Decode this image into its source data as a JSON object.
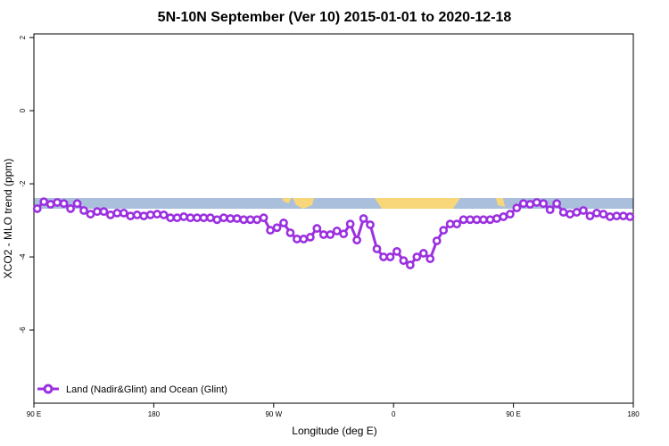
{
  "chart_data": {
    "type": "line",
    "title": "5N-10N September (Ver 10)   2015-01-01 to 2020-12-18",
    "xlabel": "Longitude (deg E)",
    "ylabel": "XCO2 - MLO trend (ppm)",
    "x": [
      92.5,
      97.5,
      102.5,
      107.5,
      112.5,
      117.5,
      122.5,
      127.5,
      132.5,
      137.5,
      142.5,
      147.5,
      152.5,
      157.5,
      162.5,
      167.5,
      172.5,
      177.5,
      182.5,
      187.5,
      192.5,
      197.5,
      202.5,
      207.5,
      212.5,
      217.5,
      222.5,
      227.5,
      232.5,
      237.5,
      242.5,
      247.5,
      252.5,
      257.5,
      262.5,
      267.5,
      272.5,
      277.5,
      282.5,
      287.5,
      292.5,
      297.5,
      302.5,
      307.5,
      312.5,
      317.5,
      322.5,
      327.5,
      332.5,
      337.5,
      342.5,
      347.5,
      352.5,
      357.5,
      362.5,
      367.5,
      372.5,
      377.5,
      382.5,
      387.5,
      392.5,
      397.5,
      402.5,
      407.5,
      412.5,
      417.5,
      422.5,
      427.5,
      432.5,
      437.5,
      442.5,
      447.5,
      452.5,
      457.5,
      462.5,
      467.5,
      472.5,
      477.5,
      482.5,
      487.5,
      492.5,
      497.5,
      502.5,
      507.5,
      512.5,
      517.5,
      522.5,
      527.5,
      532.5,
      537.5
    ],
    "series": [
      {
        "name": "Land (Nadir&Glint) and Ocean (Glint)",
        "color": "#9b30e0",
        "values": [
          -2.68,
          -2.49,
          -2.56,
          -2.51,
          -2.54,
          -2.68,
          -2.54,
          -2.73,
          -2.83,
          -2.76,
          -2.76,
          -2.85,
          -2.8,
          -2.8,
          -2.88,
          -2.85,
          -2.88,
          -2.85,
          -2.83,
          -2.85,
          -2.93,
          -2.93,
          -2.9,
          -2.93,
          -2.93,
          -2.93,
          -2.93,
          -2.98,
          -2.93,
          -2.95,
          -2.95,
          -2.98,
          -2.98,
          -2.98,
          -2.93,
          -3.27,
          -3.2,
          -3.07,
          -3.34,
          -3.51,
          -3.51,
          -3.46,
          -3.22,
          -3.39,
          -3.39,
          -3.29,
          -3.37,
          -3.1,
          -3.54,
          -2.95,
          -3.12,
          -3.78,
          -4.0,
          -4.0,
          -3.85,
          -4.1,
          -4.22,
          -4.0,
          -3.9,
          -4.05,
          -3.56,
          -3.27,
          -3.1,
          -3.1,
          -2.98,
          -2.98,
          -2.98,
          -2.98,
          -2.98,
          -2.95,
          -2.9,
          -2.83,
          -2.66,
          -2.54,
          -2.56,
          -2.51,
          -2.54,
          -2.71,
          -2.54,
          -2.78,
          -2.83,
          -2.78,
          -2.73,
          -2.88,
          -2.8,
          -2.83,
          -2.9,
          -2.88,
          -2.88,
          -2.9
        ]
      }
    ],
    "xlim": [
      90,
      540
    ],
    "ylim": [
      -8,
      2.1
    ],
    "xticks": [
      {
        "value": 90,
        "label": "90 E"
      },
      180,
      {
        "value": 270,
        "label": "90 W"
      },
      {
        "value": 360,
        "label": "0"
      },
      {
        "value": 450,
        "label": "90 E"
      },
      {
        "value": 540,
        "label": "180"
      }
    ],
    "yticks": [
      2,
      0,
      -2,
      -4,
      -6
    ],
    "legend": "lower left"
  }
}
